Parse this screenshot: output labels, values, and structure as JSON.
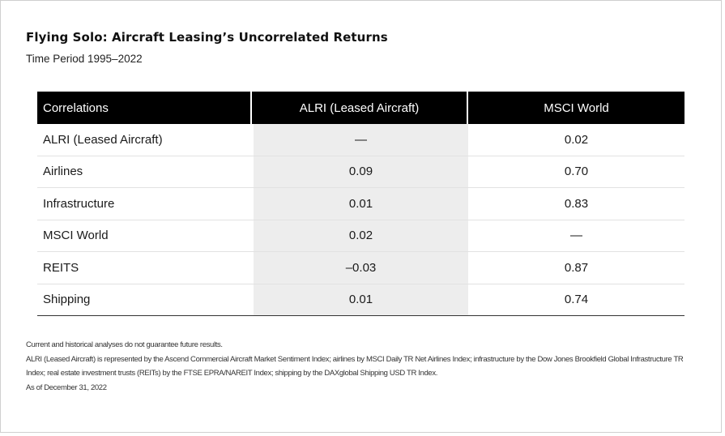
{
  "title": "Flying Solo: Aircraft Leasing’s Uncorrelated Returns",
  "subtitle": "Time Period 1995–2022",
  "chart_data": {
    "type": "table",
    "columns": [
      "Correlations",
      "ALRI (Leased Aircraft)",
      "MSCI World"
    ],
    "rows": [
      [
        "ALRI (Leased Aircraft)",
        "—",
        "0.02"
      ],
      [
        "Airlines",
        "0.09",
        "0.70"
      ],
      [
        "Infrastructure",
        "0.01",
        "0.83"
      ],
      [
        "MSCI World",
        "0.02",
        "—"
      ],
      [
        "REITS",
        "–0.03",
        "0.87"
      ],
      [
        "Shipping",
        "0.01",
        "0.74"
      ]
    ]
  },
  "notes": {
    "line1": "Current and historical analyses do not guarantee future results.",
    "line2": "ALRI (Leased Aircraft) is represented by the Ascend Commercial Aircraft Market Sentiment Index; airlines by MSCI Daily TR Net Airlines Index; infrastructure by the Dow Jones Brookfield Global Infrastructure TR Index; real estate investment trusts (REITs) by the FTSE EPRA/NAREIT Index; shipping by the DAXglobal Shipping USD TR Index.",
    "line3": "As of December 31, 2022"
  },
  "colors": {
    "header_bg": "#000000",
    "header_text": "#ffffff",
    "shaded_column": "#ededed"
  }
}
